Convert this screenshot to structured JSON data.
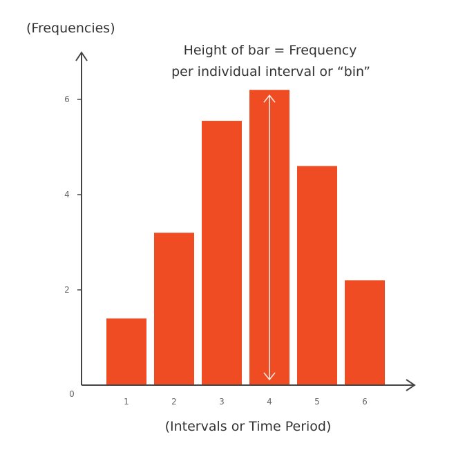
{
  "chart_data": {
    "type": "bar",
    "categories": [
      "1",
      "2",
      "3",
      "4",
      "5",
      "6"
    ],
    "values": [
      1.4,
      3.2,
      5.55,
      6.2,
      4.6,
      2.2
    ],
    "ylabel": "(Frequencies)",
    "xlabel": "(Intervals or Time Period)",
    "y_ticks": [
      "0",
      "2",
      "4",
      "6"
    ],
    "ylim": [
      0,
      7
    ],
    "annotation": {
      "line1": "Height of bar = Frequency",
      "line2": "per individual interval or  “bin”",
      "bar": "4"
    },
    "grid": false,
    "bar_color": "#ef4c24",
    "axis_color": "#444444"
  }
}
